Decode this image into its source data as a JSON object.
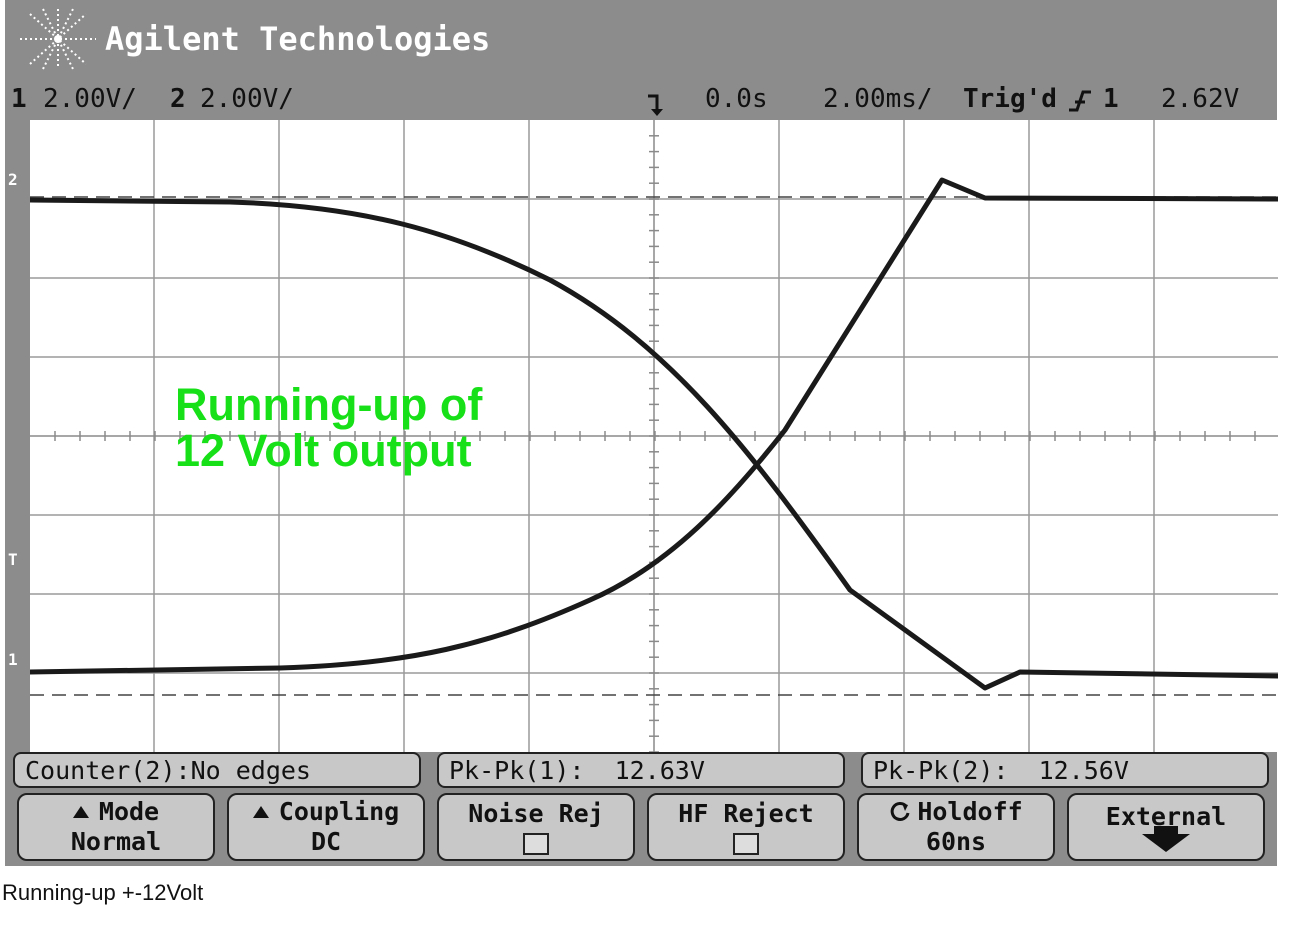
{
  "brand": {
    "name": "Agilent Technologies",
    "logo_icon": "agilent-spark-logo-icon"
  },
  "status": {
    "ch1_num": "1",
    "ch1_scale": "2.00V/",
    "ch2_num": "2",
    "ch2_scale": "2.00V/",
    "trigger_marker_icon": "trigger-position-icon",
    "time_delay": "0.0s",
    "time_scale": "2.00ms/",
    "trigger_status": "Trig'd",
    "trigger_slope_icon": "rising-edge-icon",
    "trigger_source": "1",
    "trigger_level": "2.62V"
  },
  "screen": {
    "markers": {
      "ch2": "2",
      "trigger": "T",
      "ch1": "1"
    },
    "annotation_line1": "Running-up of",
    "annotation_line2": "12 Volt output",
    "annotation_color": "#18e018",
    "trace_color": "#1a1a1a"
  },
  "measurements": [
    {
      "label": "Counter(2):No edges"
    },
    {
      "label": "Pk-Pk(1):  12.63V"
    },
    {
      "label": "Pk-Pk(2):  12.56V"
    }
  ],
  "softkeys": {
    "mode": {
      "title": "Mode",
      "value": "Normal"
    },
    "coupling": {
      "title": "Coupling",
      "value": "DC"
    },
    "noise_rej": {
      "title": "Noise Rej",
      "checked": false
    },
    "hf_reject": {
      "title": "HF Reject",
      "checked": false
    },
    "holdoff": {
      "title": "Holdoff",
      "value": "60ns",
      "icon": "rotary-knob-icon"
    },
    "external": {
      "title": "External",
      "icon": "more-arrow-icon"
    }
  },
  "caption": "Running-up +-12Volt"
}
